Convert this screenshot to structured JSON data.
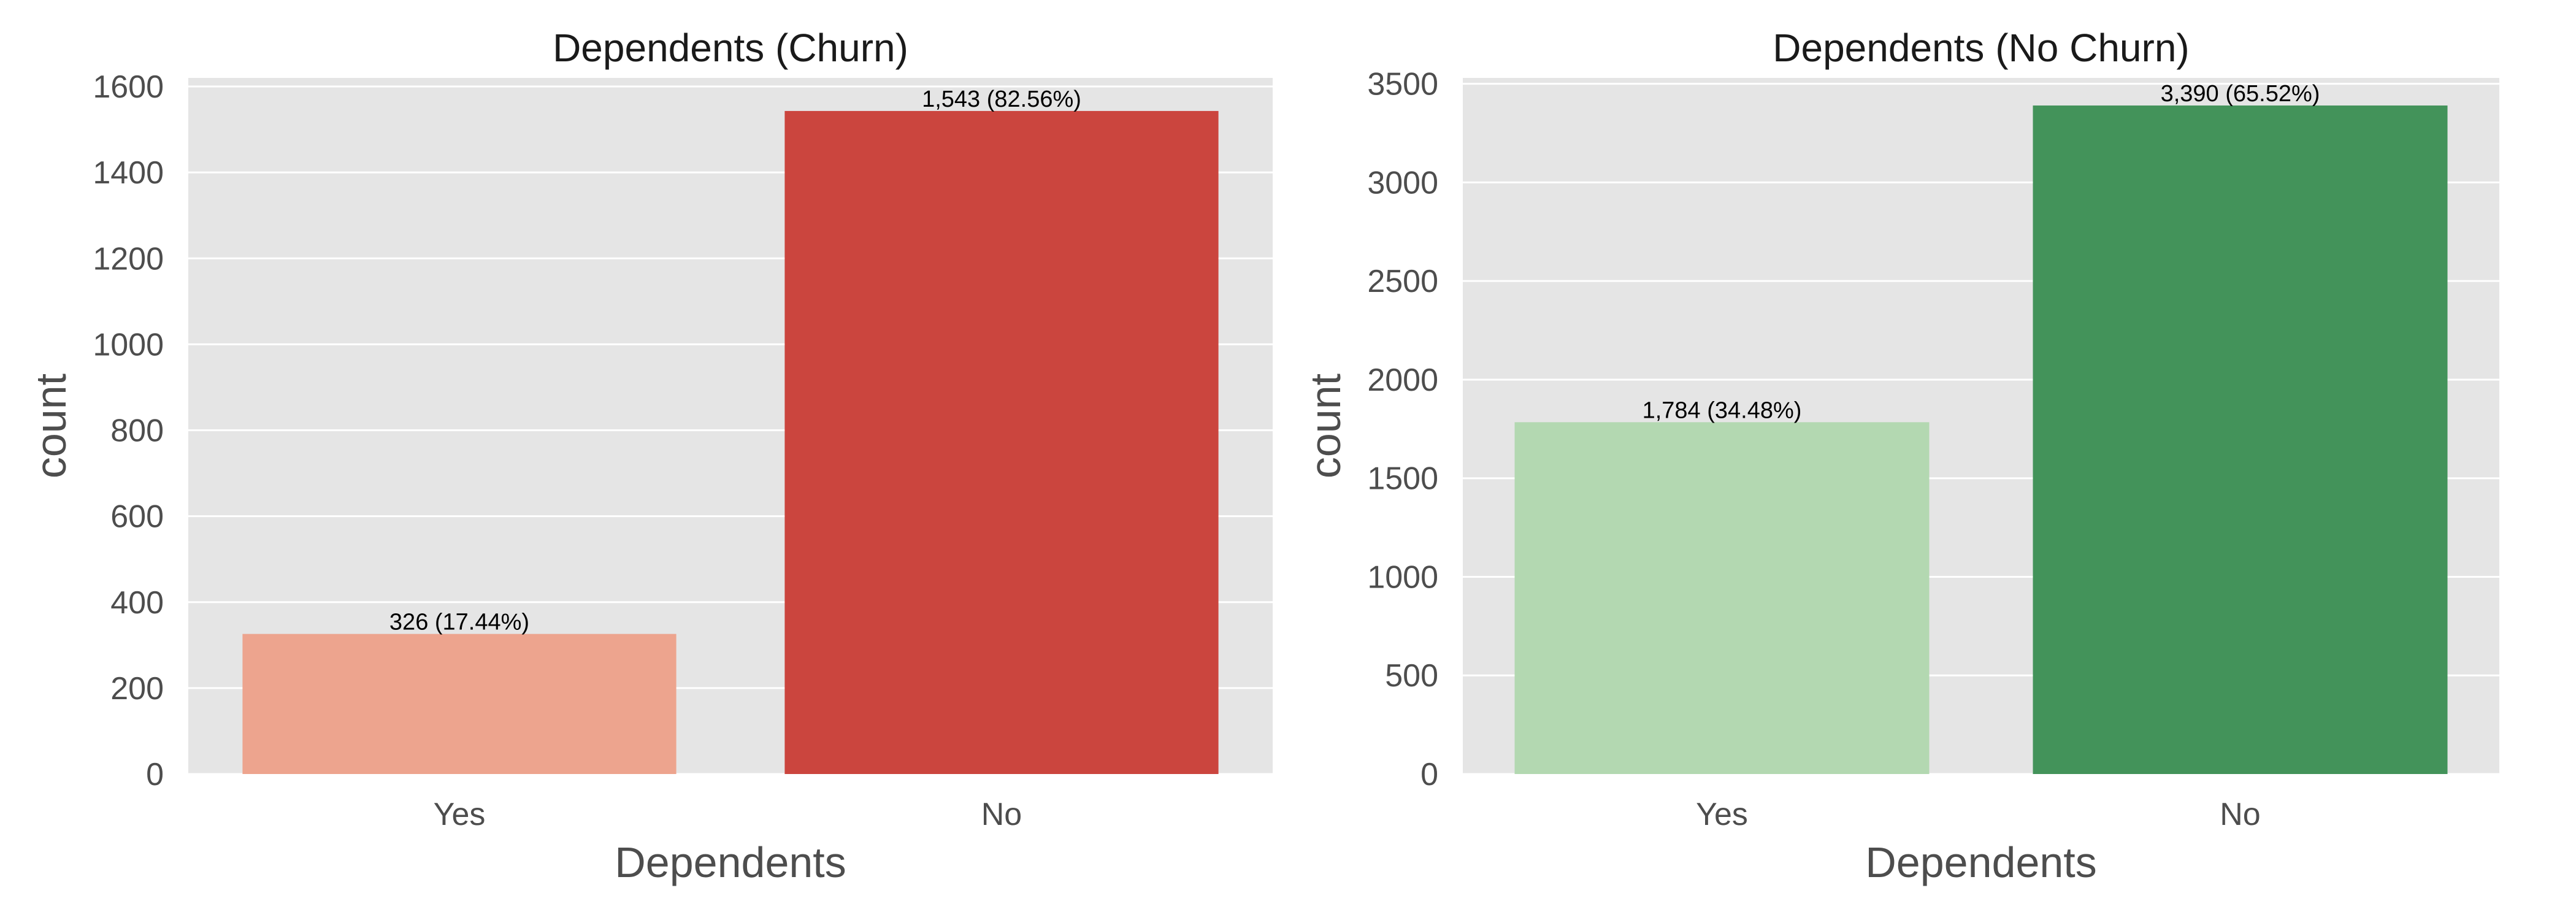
{
  "chart_data": [
    {
      "type": "bar",
      "title": "Dependents (Churn)",
      "xlabel": "Dependents",
      "ylabel": "count",
      "categories": [
        "Yes",
        "No"
      ],
      "values": [
        326,
        1543
      ],
      "data_labels": [
        "326 (17.44%)",
        "1,543 (82.56%)"
      ],
      "colors": [
        "#eda48e",
        "#cb453e"
      ],
      "ylim": [
        0,
        1620
      ],
      "yticks": [
        0,
        200,
        400,
        600,
        800,
        1000,
        1200,
        1400,
        1600
      ],
      "grid": true,
      "background": "#e5e5e5"
    },
    {
      "type": "bar",
      "title": "Dependents (No Churn)",
      "xlabel": "Dependents",
      "ylabel": "count",
      "categories": [
        "Yes",
        "No"
      ],
      "values": [
        1784,
        3390
      ],
      "data_labels": [
        "1,784 (34.48%)",
        "3,390 (65.52%)"
      ],
      "colors": [
        "#b3d8b1",
        "#43935a"
      ],
      "ylim": [
        0,
        3530
      ],
      "yticks": [
        0,
        500,
        1000,
        1500,
        2000,
        2500,
        3000,
        3500
      ],
      "grid": true,
      "background": "#e5e5e5"
    }
  ]
}
